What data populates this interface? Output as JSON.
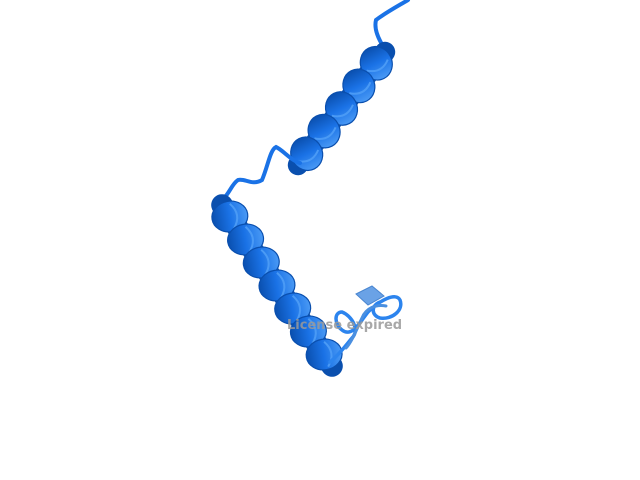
{
  "viewer": {
    "watermark_text": "License expired",
    "structure_type": "protein-cartoon-ribbon",
    "colors": {
      "ribbon": "#1a72e6",
      "ribbon_dark": "#0a4fae",
      "ribbon_light": "#4a9af5",
      "loop": "#2c84ee",
      "pale_segment": "#6aa2e6",
      "background": "#ffffff",
      "watermark": "#9a9a9a"
    }
  }
}
